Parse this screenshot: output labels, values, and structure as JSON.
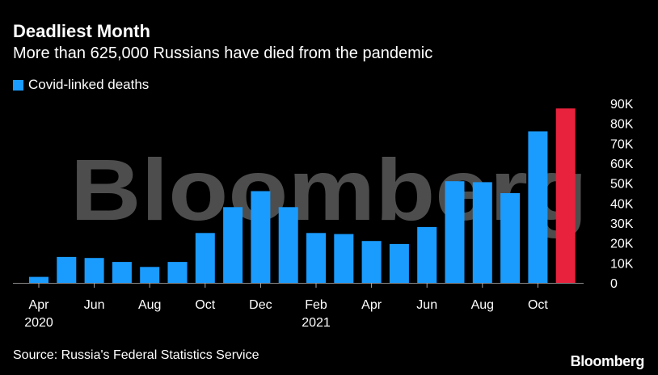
{
  "header": {
    "title": "Deadliest Month",
    "subtitle": "More than 625,000 Russians have died from the pandemic"
  },
  "legend": {
    "label": "Covid-linked deaths"
  },
  "footer": {
    "source": "Source: Russia's Federal Statistics Service",
    "brand": "Bloomberg"
  },
  "watermark": "Bloomberg",
  "colors": {
    "background": "#000000",
    "bar": "#1a9cff",
    "highlight": "#e8223c",
    "text": "#ffffff",
    "gridline": "#666666"
  },
  "chart_data": {
    "type": "bar",
    "title": "Deadliest Month",
    "subtitle": "More than 625,000 Russians have died from the pandemic",
    "xlabel": "",
    "ylabel": "",
    "ylim": [
      0,
      90000
    ],
    "y_ticks": [
      {
        "value": 0,
        "label": "0"
      },
      {
        "value": 10000,
        "label": "10K"
      },
      {
        "value": 20000,
        "label": "20K"
      },
      {
        "value": 30000,
        "label": "30K"
      },
      {
        "value": 40000,
        "label": "40K"
      },
      {
        "value": 50000,
        "label": "50K"
      },
      {
        "value": 60000,
        "label": "60K"
      },
      {
        "value": 70000,
        "label": "70K"
      },
      {
        "value": 80000,
        "label": "80K"
      },
      {
        "value": 90000,
        "label": "90K"
      }
    ],
    "y_axis_position": "right",
    "grid": false,
    "legend_position": "top-left",
    "categories": [
      "Apr 2020",
      "May 2020",
      "Jun 2020",
      "Jul 2020",
      "Aug 2020",
      "Sep 2020",
      "Oct 2020",
      "Nov 2020",
      "Dec 2020",
      "Jan 2021",
      "Feb 2021",
      "Mar 2021",
      "Apr 2021",
      "May 2021",
      "Jun 2021",
      "Jul 2021",
      "Aug 2021",
      "Sep 2021",
      "Oct 2021",
      "Nov 2021"
    ],
    "x_tick_labels": [
      {
        "index": 0,
        "label": "Apr",
        "year": "2020"
      },
      {
        "index": 2,
        "label": "Jun",
        "year": ""
      },
      {
        "index": 4,
        "label": "Aug",
        "year": ""
      },
      {
        "index": 6,
        "label": "Oct",
        "year": ""
      },
      {
        "index": 8,
        "label": "Dec",
        "year": ""
      },
      {
        "index": 10,
        "label": "Feb",
        "year": "2021"
      },
      {
        "index": 12,
        "label": "Apr",
        "year": ""
      },
      {
        "index": 14,
        "label": "Jun",
        "year": ""
      },
      {
        "index": 16,
        "label": "Aug",
        "year": ""
      },
      {
        "index": 18,
        "label": "Oct",
        "year": ""
      }
    ],
    "series": [
      {
        "name": "Covid-linked deaths",
        "values": [
          3000,
          13000,
          12500,
          10500,
          8000,
          10500,
          25000,
          38000,
          46000,
          38000,
          25000,
          24500,
          21000,
          19500,
          28000,
          51000,
          50500,
          45000,
          76000,
          87500
        ],
        "highlight_index": 19
      }
    ]
  }
}
